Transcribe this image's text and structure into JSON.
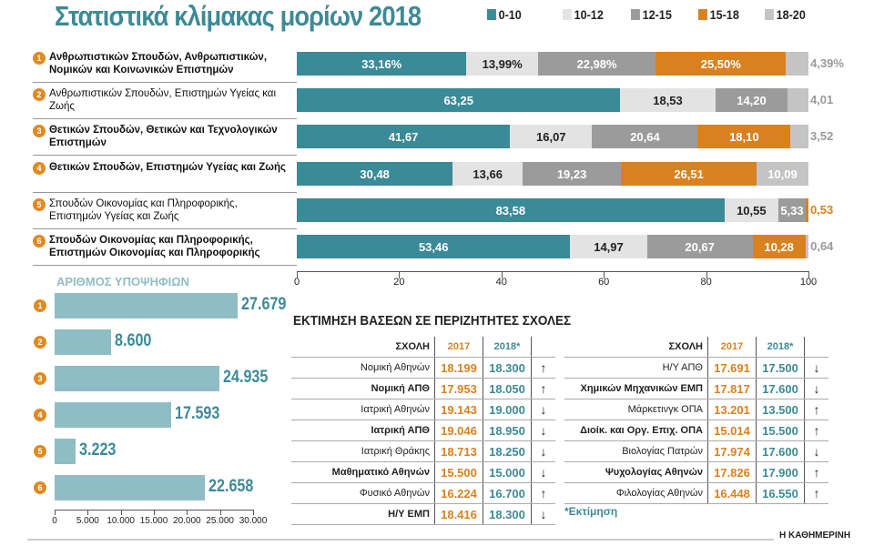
{
  "title": "Στατιστικά κλίμακας μορίων 2018",
  "colors": {
    "0-10": "#3a8a97",
    "10-12": "#e3e3e3",
    "12-15": "#9b9b9b",
    "15-18": "#d9811f",
    "18-20": "#c4c4c4",
    "candidates": "#8fbdc6",
    "teal": "#3d8a96"
  },
  "chart_data": [
    {
      "type": "bar",
      "stacked": true,
      "orientation": "horizontal",
      "legend": [
        "0-10",
        "10-12",
        "12-15",
        "15-18",
        "18-20"
      ],
      "legend_position": "top-right",
      "xlim": [
        0,
        100
      ],
      "xticks": [
        "0",
        "20",
        "40",
        "60",
        "80",
        "100"
      ],
      "categories": [
        {
          "num": "1",
          "label": "Ανθρωπιστικών Σπουδών, Ανθρωπιστικών, Νομικών και Κοινωνικών Επιστημών",
          "bold": true
        },
        {
          "num": "2",
          "label": "Ανθρωπιστικών Σπουδών, Επιστημών Υγείας και Ζωής",
          "bold": false
        },
        {
          "num": "3",
          "label": "Θετικών Σπουδών, Θετικών και Τεχνολογικών Επιστημών",
          "bold": true
        },
        {
          "num": "4",
          "label": "Θετικών Σπουδών, Επιστημών Υγείας και Ζωής",
          "bold": true
        },
        {
          "num": "5",
          "label": "Σπουδών Οικονομίας και Πληροφορικής, Επιστημών Υγείας και Ζωής",
          "bold": false
        },
        {
          "num": "6",
          "label": "Σπουδών Οικονομίας και Πληροφορικής, Επιστημών Οικονομίας και Πληροφορικής",
          "bold": true
        }
      ],
      "rows": [
        {
          "values": [
            33.16,
            13.99,
            22.98,
            25.5,
            4.39
          ],
          "labels": [
            "33,16%",
            "13,99%",
            "22,98%",
            "25,50%",
            "4,39%"
          ]
        },
        {
          "values": [
            63.25,
            18.53,
            14.2,
            0,
            4.01
          ],
          "labels": [
            "63,25",
            "18,53",
            "14,20",
            "",
            "4,01"
          ]
        },
        {
          "values": [
            41.67,
            16.07,
            20.64,
            18.1,
            3.52
          ],
          "labels": [
            "41,67",
            "16,07",
            "20,64",
            "18,10",
            "3,52"
          ]
        },
        {
          "values": [
            30.48,
            13.66,
            19.23,
            26.51,
            10.09
          ],
          "labels": [
            "30,48",
            "13,66",
            "19,23",
            "26,51",
            "10,09"
          ]
        },
        {
          "values": [
            83.58,
            10.55,
            5.33,
            0.53,
            0
          ],
          "labels": [
            "83,58",
            "10,55",
            "5,33",
            "0,53",
            ""
          ]
        },
        {
          "values": [
            53.46,
            14.97,
            20.67,
            10.28,
            0.64
          ],
          "labels": [
            "53,46",
            "14,97",
            "20,67",
            "10,28",
            "0,64"
          ]
        }
      ]
    },
    {
      "type": "bar",
      "orientation": "horizontal",
      "title": "ΑΡΙΘΜΟΣ ΥΠΟΨΗΦΙΩΝ",
      "categories": [
        "1",
        "2",
        "3",
        "4",
        "5",
        "6"
      ],
      "values": [
        27679,
        8600,
        24935,
        17593,
        3223,
        22658
      ],
      "labels": [
        "27.679",
        "8.600",
        "24.935",
        "17.593",
        "3.223",
        "22.658"
      ],
      "xlim": [
        0,
        30000
      ],
      "xticks": [
        "0",
        "5.000",
        "10.000",
        "15.000",
        "20.000",
        "25.000",
        "30.000"
      ]
    }
  ],
  "table": {
    "title": "ΕΚΤΙΜΗΣΗ ΒΑΣΕΩΝ ΣΕ ΠΕΡΙΖΗΤΗΤΕΣ ΣΧΟΛΕΣ",
    "headers": [
      "ΣΧΟΛΗ",
      "2017",
      "2018*"
    ],
    "left": [
      {
        "name": "Νομική Αθηνών",
        "y2017": "18.199",
        "y2018": "18.300",
        "trend": "up",
        "bold": false
      },
      {
        "name": "Νομική ΑΠΘ",
        "y2017": "17.953",
        "y2018": "18.050",
        "trend": "up",
        "bold": true
      },
      {
        "name": "Ιατρική Αθηνών",
        "y2017": "19.143",
        "y2018": "19.000",
        "trend": "down",
        "bold": false
      },
      {
        "name": "Ιατρική ΑΠΘ",
        "y2017": "19.046",
        "y2018": "18.950",
        "trend": "down",
        "bold": true
      },
      {
        "name": "Ιατρική Θράκης",
        "y2017": "18.713",
        "y2018": "18.250",
        "trend": "down",
        "bold": false
      },
      {
        "name": "Μαθηματικό Αθηνών",
        "y2017": "15.500",
        "y2018": "15.000",
        "trend": "down",
        "bold": true
      },
      {
        "name": "Φυσικό Αθηνών",
        "y2017": "16.224",
        "y2018": "16.700",
        "trend": "up",
        "bold": false
      },
      {
        "name": "Η/Υ ΕΜΠ",
        "y2017": "18.416",
        "y2018": "18.300",
        "trend": "down",
        "bold": true
      }
    ],
    "right": [
      {
        "name": "Η/Υ ΑΠΘ",
        "y2017": "17.691",
        "y2018": "17.500",
        "trend": "down",
        "bold": false
      },
      {
        "name": "Χημικών Μηχανικών ΕΜΠ",
        "y2017": "17.817",
        "y2018": "17.600",
        "trend": "down",
        "bold": true
      },
      {
        "name": "Μάρκετινγκ ΟΠΑ",
        "y2017": "13.201",
        "y2018": "13.500",
        "trend": "up",
        "bold": false
      },
      {
        "name": "Διοίκ. και Οργ. Επιχ. ΟΠΑ",
        "y2017": "15.014",
        "y2018": "15.500",
        "trend": "up",
        "bold": true
      },
      {
        "name": "Βιολογίας Πατρών",
        "y2017": "17.974",
        "y2018": "17.600",
        "trend": "down",
        "bold": false
      },
      {
        "name": "Ψυχολογίας Αθηνών",
        "y2017": "17.826",
        "y2018": "17.900",
        "trend": "up",
        "bold": true
      },
      {
        "name": "Φιλολογίας Αθηνών",
        "y2017": "16.448",
        "y2018": "16.550",
        "trend": "up",
        "bold": false
      }
    ],
    "footnote": "*Εκτίμηση"
  },
  "source": "Η ΚΑΘΗΜΕΡΙΝΗ"
}
